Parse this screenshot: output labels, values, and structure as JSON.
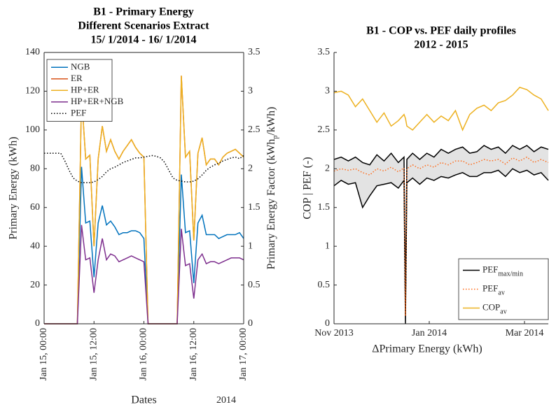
{
  "chart_data": [
    {
      "type": "line",
      "title": [
        "B1 - Primary Energy",
        "Different Scenarios Extract",
        "15/ 1/2014 - 16/ 1/2014"
      ],
      "ylabel": "Primary Energy (kWh)",
      "y2label": {
        "before": "Primary Energy Factor (kWh",
        "sub": "p",
        "after": "/kWh)"
      },
      "xlabel": "Dates",
      "x_corner_label": "2014",
      "x": [
        0,
        1,
        2,
        3,
        4,
        5,
        6,
        7,
        8,
        9,
        10,
        11,
        12,
        13,
        14,
        15,
        16,
        17,
        18,
        19,
        20,
        21,
        22,
        23,
        24,
        25,
        26,
        27,
        28,
        29,
        30,
        31,
        32,
        33,
        34,
        35,
        36,
        37,
        38,
        39,
        40,
        41,
        42,
        43,
        44,
        45,
        46,
        47,
        48
      ],
      "xlim": [
        0,
        48
      ],
      "xticks": [
        {
          "value": 0,
          "label": "Jan 15, 00:00"
        },
        {
          "value": 12,
          "label": "Jan 15, 12:00"
        },
        {
          "value": 24,
          "label": "Jan 16, 00:00"
        },
        {
          "value": 36,
          "label": "Jan 16, 12:00"
        },
        {
          "value": 48,
          "label": "Jan 17, 00:00"
        }
      ],
      "ylim": [
        0,
        140
      ],
      "yticks": [
        0,
        20,
        40,
        60,
        80,
        100,
        120,
        140
      ],
      "y2lim": [
        0,
        3.5
      ],
      "y2ticks": [
        0,
        0.5,
        1,
        1.5,
        2,
        2.5,
        3,
        3.5
      ],
      "legend": "upper left",
      "series": [
        {
          "name": "NGB",
          "color": "#0072bd",
          "values": [
            0,
            0,
            0,
            0,
            0,
            0,
            0,
            0,
            0,
            81,
            52,
            53,
            24,
            52,
            61,
            51,
            53,
            50,
            46,
            47,
            47,
            48,
            48,
            47,
            44,
            0,
            0,
            0,
            0,
            0,
            0,
            0,
            0,
            77,
            47,
            48,
            21,
            52,
            56,
            46,
            46,
            46,
            44,
            45,
            46,
            46,
            46,
            47,
            44
          ]
        },
        {
          "name": "ER",
          "color": "#d95319",
          "values": [
            0,
            0,
            0,
            0,
            0,
            0,
            0,
            0,
            0,
            118,
            85,
            87,
            40,
            85,
            102,
            89,
            95,
            89,
            85,
            89,
            92,
            95,
            91,
            88,
            86,
            0,
            0,
            0,
            0,
            0,
            0,
            0,
            0,
            128,
            86,
            89,
            43,
            88,
            96,
            82,
            85,
            85,
            82,
            86,
            88,
            89,
            90,
            88,
            86
          ]
        },
        {
          "name": "HP+ER",
          "color": "#edb120",
          "values": [
            0,
            0,
            0,
            0,
            0,
            0,
            0,
            0,
            0,
            118,
            85,
            87,
            40,
            85,
            102,
            89,
            95,
            89,
            85,
            89,
            92,
            95,
            91,
            88,
            86,
            0,
            0,
            0,
            0,
            0,
            0,
            0,
            0,
            128,
            86,
            89,
            43,
            88,
            96,
            82,
            85,
            85,
            82,
            86,
            88,
            89,
            90,
            88,
            86
          ]
        },
        {
          "name": "HP+ER+NGB",
          "color": "#7e2f8e",
          "values": [
            0,
            0,
            0,
            0,
            0,
            0,
            0,
            0,
            0,
            51,
            33,
            34,
            16,
            33,
            44,
            33,
            36,
            35,
            32,
            33,
            34,
            35,
            34,
            33,
            32,
            0,
            0,
            0,
            0,
            0,
            0,
            0,
            0,
            49,
            30,
            31,
            13,
            33,
            36,
            31,
            32,
            32,
            31,
            32,
            33,
            34,
            34,
            34,
            33
          ]
        },
        {
          "name": "PEF",
          "color": "#000000",
          "style": "dotted",
          "axis": "y2",
          "values": [
            2.2,
            2.2,
            2.2,
            2.2,
            2.2,
            2.1,
            1.98,
            1.88,
            1.84,
            1.82,
            1.82,
            1.82,
            1.83,
            1.86,
            1.9,
            1.96,
            2.0,
            2.02,
            2.05,
            2.08,
            2.1,
            2.12,
            2.14,
            2.14,
            2.15,
            2.16,
            2.17,
            2.16,
            2.14,
            2.08,
            1.98,
            1.88,
            1.85,
            1.84,
            1.83,
            1.83,
            1.84,
            1.87,
            1.92,
            1.98,
            2.02,
            2.05,
            2.07,
            2.1,
            2.12,
            2.14,
            2.15,
            2.13,
            2.17
          ]
        }
      ]
    },
    {
      "type": "line",
      "title": [
        "B1 - COP vs. PEF daily profiles",
        "2012 - 2015"
      ],
      "ylabel": "COP | PEF (-)",
      "xlabel": "ΔPrimary Energy (kWh)",
      "x": [
        0,
        0.15,
        0.3,
        0.45,
        0.6,
        0.75,
        0.9,
        1.05,
        1.2,
        1.35,
        1.47,
        1.5,
        1.53,
        1.65,
        1.8,
        1.95,
        2.1,
        2.25,
        2.4,
        2.55,
        2.7,
        2.85,
        3.0,
        3.15,
        3.3,
        3.45,
        3.6,
        3.75,
        3.9,
        4.05,
        4.2,
        4.35,
        4.5
      ],
      "xlim": [
        0,
        4.5
      ],
      "xticks": [
        {
          "value": 0,
          "label": "Nov 2013"
        },
        {
          "value": 2,
          "label": "Jan 2014"
        },
        {
          "value": 4,
          "label": "Mar 2014"
        }
      ],
      "ylim": [
        0,
        3.5
      ],
      "yticks": [
        0,
        0.5,
        1,
        1.5,
        2,
        2.5,
        3,
        3.5
      ],
      "legend": "lower right",
      "series": [
        {
          "name": "PEF",
          "name_sub": "max/min",
          "color": "#000000",
          "band_color": "#e3e3e3",
          "values_max": [
            2.12,
            2.15,
            2.1,
            2.15,
            2.08,
            2.05,
            2.18,
            2.1,
            2.2,
            2.08,
            2.15,
            0.17,
            2.12,
            2.2,
            2.12,
            2.2,
            2.15,
            2.25,
            2.2,
            2.25,
            2.28,
            2.2,
            2.22,
            2.3,
            2.25,
            2.28,
            2.2,
            2.3,
            2.25,
            2.3,
            2.22,
            2.28,
            2.25
          ],
          "values_min": [
            1.78,
            1.85,
            1.8,
            1.82,
            1.5,
            1.65,
            1.78,
            1.8,
            1.82,
            1.75,
            1.85,
            0,
            1.82,
            1.88,
            1.8,
            1.88,
            1.85,
            1.9,
            1.88,
            1.92,
            1.95,
            1.9,
            1.9,
            1.95,
            1.95,
            1.98,
            1.9,
            2.0,
            1.95,
            1.98,
            1.92,
            1.95,
            1.85
          ]
        },
        {
          "name": "PEF",
          "name_sub": "av",
          "color": "#ff6b1a",
          "style": "dotted",
          "values": [
            1.97,
            2.0,
            1.98,
            2.0,
            1.95,
            1.92,
            2.0,
            1.97,
            2.02,
            1.96,
            2.01,
            0.1,
            2.0,
            2.05,
            2.0,
            2.05,
            2.02,
            2.08,
            2.05,
            2.1,
            2.1,
            2.05,
            2.08,
            2.12,
            2.1,
            2.12,
            2.06,
            2.14,
            2.1,
            2.15,
            2.08,
            2.12,
            2.08
          ]
        },
        {
          "name": "COP",
          "name_sub": "av",
          "color": "#edb120",
          "values": [
            2.98,
            3.0,
            2.95,
            2.8,
            2.9,
            2.75,
            2.6,
            2.72,
            2.55,
            2.62,
            2.7,
            2.65,
            2.55,
            2.5,
            2.6,
            2.7,
            2.6,
            2.68,
            2.62,
            2.75,
            2.5,
            2.7,
            2.78,
            2.82,
            2.75,
            2.85,
            2.88,
            2.95,
            3.05,
            3.02,
            2.95,
            2.9,
            2.75
          ]
        }
      ]
    }
  ]
}
